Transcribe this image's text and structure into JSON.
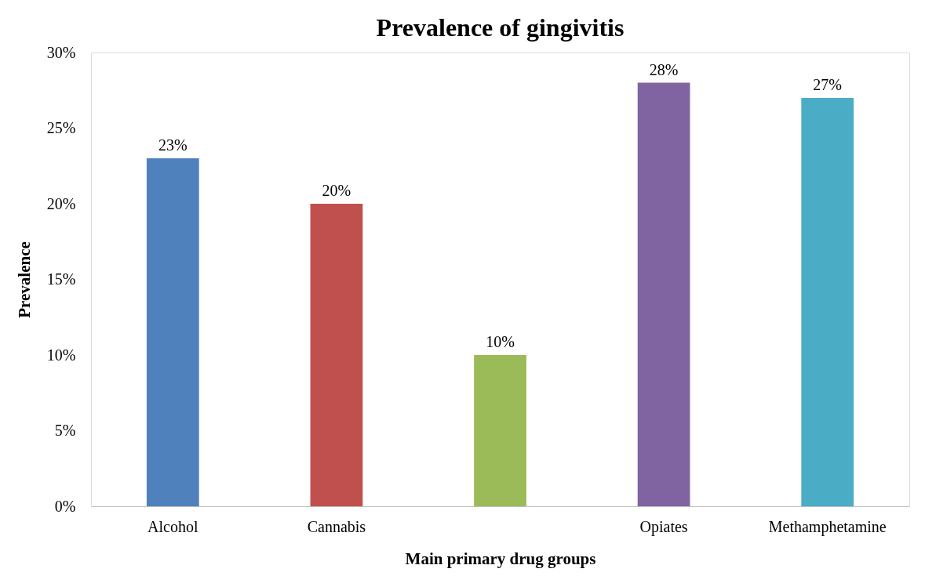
{
  "chart_data": {
    "type": "bar",
    "title": "Prevalence of gingivitis",
    "xlabel": "Main primary drug groups",
    "ylabel": "Prevalence",
    "categories": [
      "Alcohol",
      "Cannabis",
      null,
      "Opiates",
      "Methamphetamine"
    ],
    "values": [
      23,
      20,
      10,
      28,
      27
    ],
    "colors": [
      "#4f81bd",
      "#c0504d",
      "#9bbb59",
      "#8064a2",
      "#4bacc6"
    ],
    "value_labels": [
      "23%",
      "20%",
      "10%",
      "28%",
      "27%"
    ],
    "ylim": [
      0,
      30
    ],
    "yticks": [
      {
        "value": 0,
        "label": "0%"
      },
      {
        "value": 5,
        "label": "5%"
      },
      {
        "value": 10,
        "label": "10%"
      },
      {
        "value": 15,
        "label": "15%"
      },
      {
        "value": 20,
        "label": "20%"
      },
      {
        "value": 25,
        "label": "25%"
      },
      {
        "value": 30,
        "label": "30%"
      }
    ],
    "grid": false
  }
}
